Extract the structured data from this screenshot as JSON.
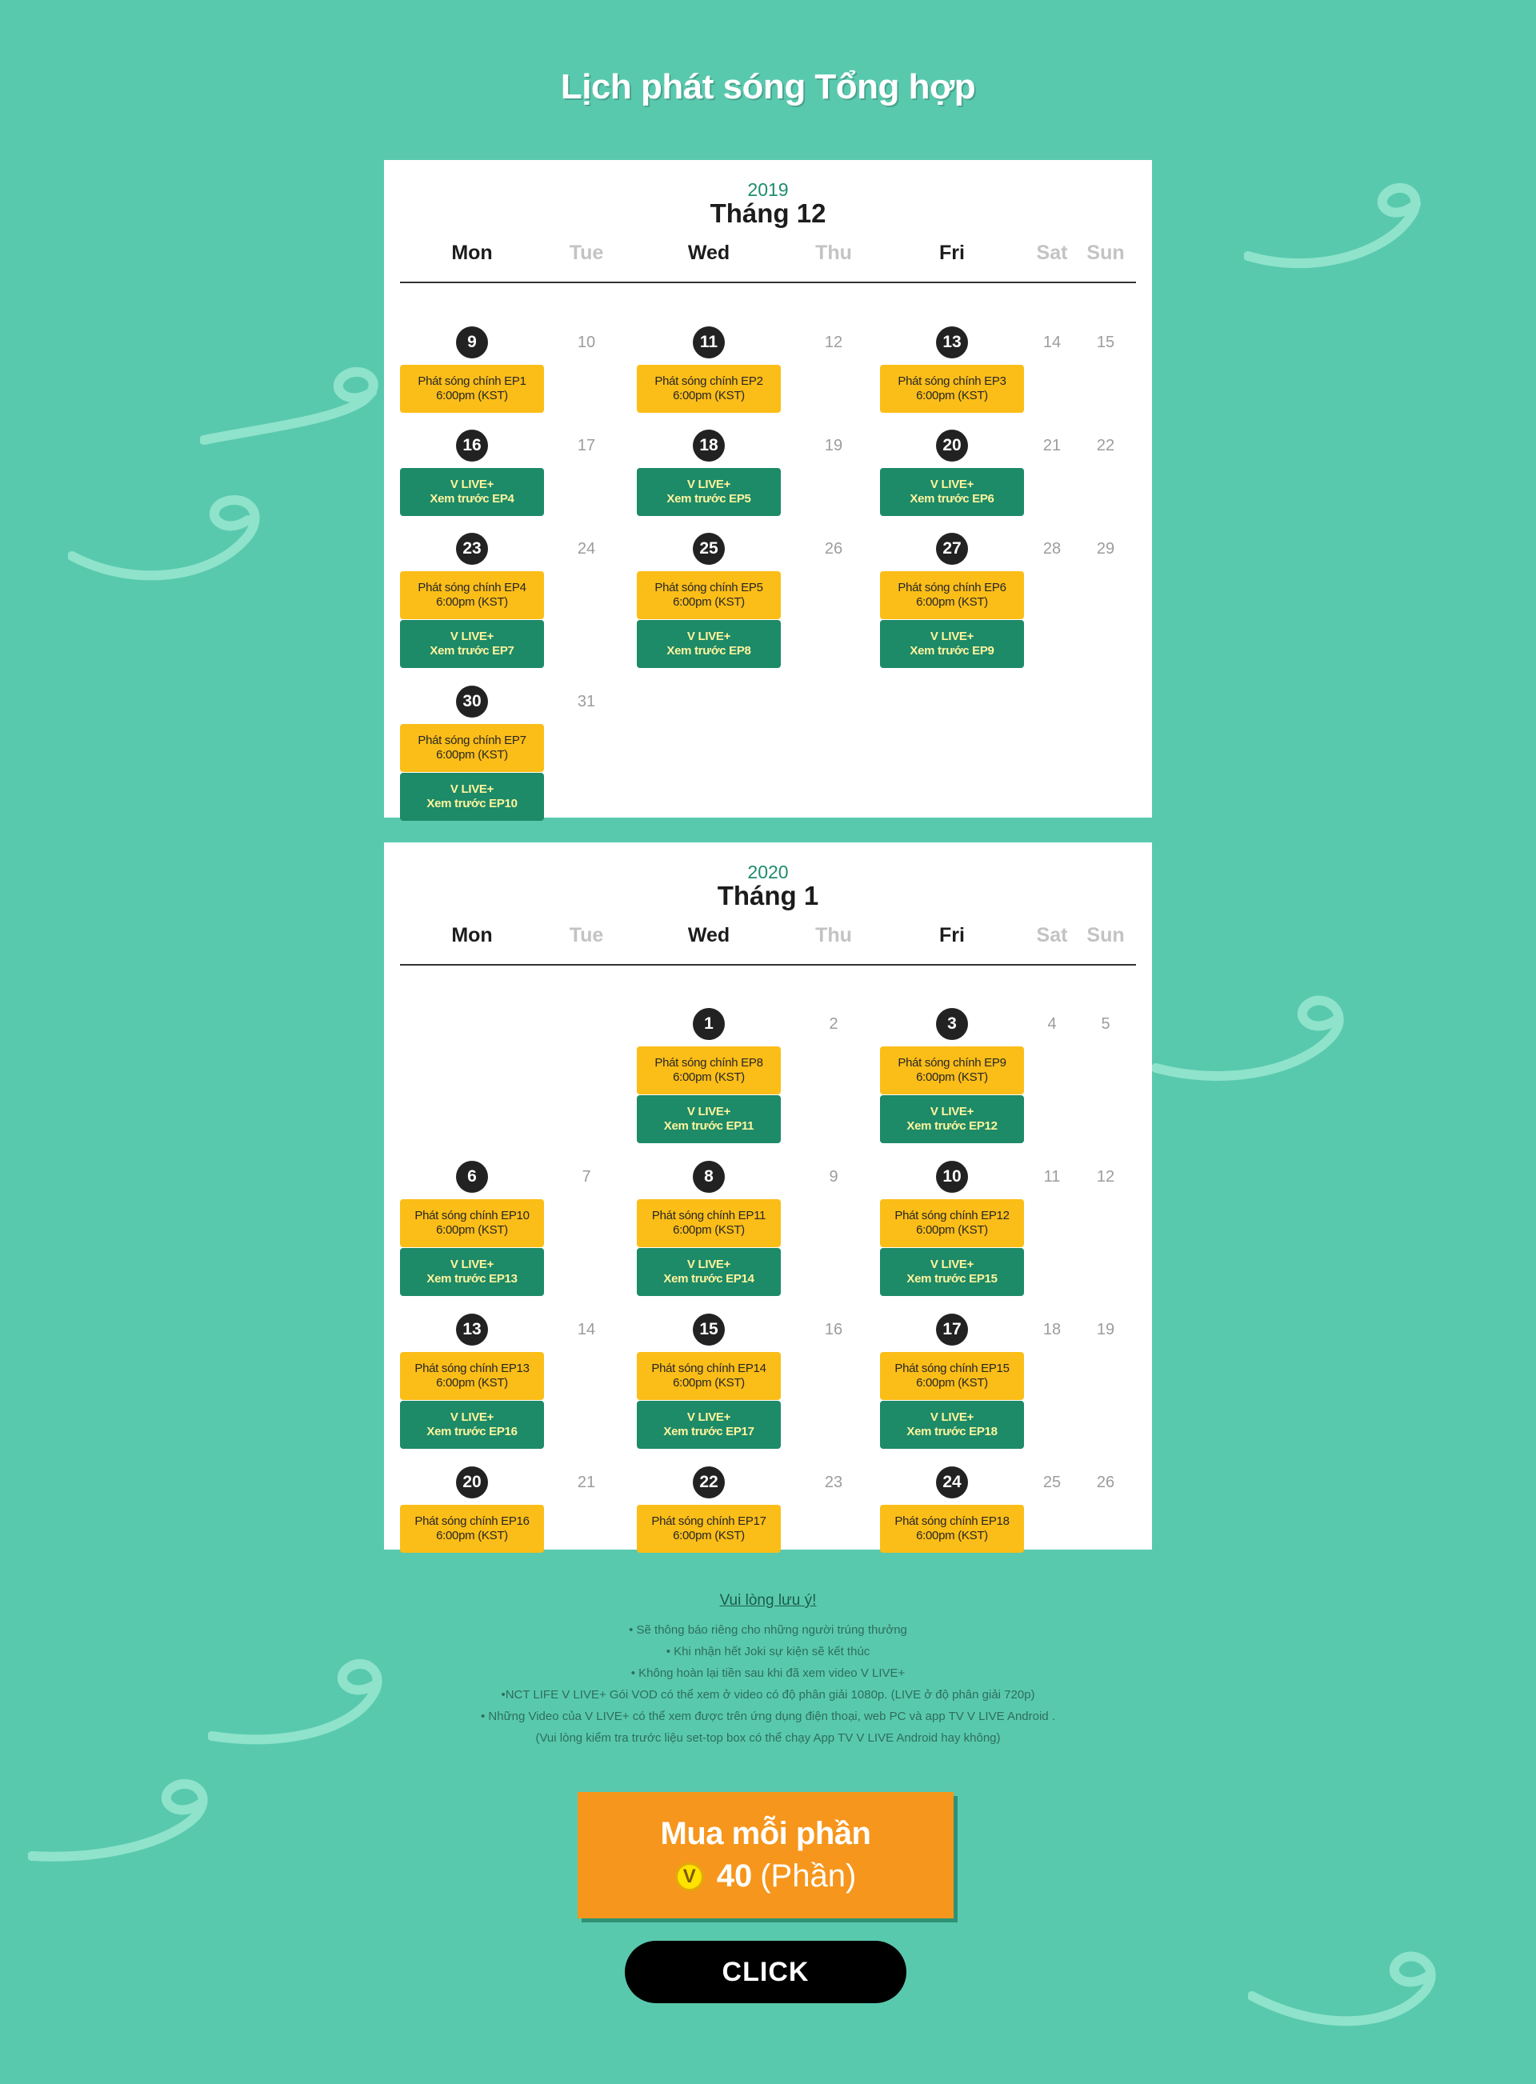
{
  "page_title": "Lịch phát sóng Tổng hợp",
  "weekday_labels": [
    "Mon",
    "Tue",
    "Wed",
    "Thu",
    "Fri",
    "Sat",
    "Sun"
  ],
  "calendars": [
    {
      "year": "2019",
      "month": "Tháng 12",
      "weeks": [
        {
          "days": [
            {
              "d": "9",
              "hl": true,
              "events": [
                {
                  "t": "main",
                  "l1": "Phát sóng chính EP1",
                  "l2": "6:00pm (KST)"
                }
              ]
            },
            {
              "d": "10"
            },
            {
              "d": "11",
              "hl": true,
              "events": [
                {
                  "t": "main",
                  "l1": "Phát sóng chính EP2",
                  "l2": "6:00pm (KST)"
                }
              ]
            },
            {
              "d": "12"
            },
            {
              "d": "13",
              "hl": true,
              "events": [
                {
                  "t": "main",
                  "l1": "Phát sóng chính EP3",
                  "l2": "6:00pm (KST)"
                }
              ]
            },
            {
              "d": "14"
            },
            {
              "d": "15"
            }
          ]
        },
        {
          "days": [
            {
              "d": "16",
              "hl": true,
              "events": [
                {
                  "t": "live",
                  "l1": "V LIVE+",
                  "l2": "Xem trước EP4"
                }
              ]
            },
            {
              "d": "17"
            },
            {
              "d": "18",
              "hl": true,
              "events": [
                {
                  "t": "live",
                  "l1": "V LIVE+",
                  "l2": "Xem trước EP5"
                }
              ]
            },
            {
              "d": "19"
            },
            {
              "d": "20",
              "hl": true,
              "events": [
                {
                  "t": "live",
                  "l1": "V LIVE+",
                  "l2": "Xem trước EP6"
                }
              ]
            },
            {
              "d": "21"
            },
            {
              "d": "22"
            }
          ]
        },
        {
          "days": [
            {
              "d": "23",
              "hl": true,
              "events": [
                {
                  "t": "main",
                  "l1": "Phát sóng chính EP4",
                  "l2": "6:00pm (KST)"
                },
                {
                  "t": "live",
                  "l1": "V LIVE+",
                  "l2": "Xem trước EP7"
                }
              ]
            },
            {
              "d": "24"
            },
            {
              "d": "25",
              "hl": true,
              "events": [
                {
                  "t": "main",
                  "l1": "Phát sóng chính EP5",
                  "l2": "6:00pm (KST)"
                },
                {
                  "t": "live",
                  "l1": "V LIVE+",
                  "l2": "Xem trước EP8"
                }
              ]
            },
            {
              "d": "26"
            },
            {
              "d": "27",
              "hl": true,
              "events": [
                {
                  "t": "main",
                  "l1": "Phát sóng chính EP6",
                  "l2": "6:00pm (KST)"
                },
                {
                  "t": "live",
                  "l1": "V LIVE+",
                  "l2": "Xem trước EP9"
                }
              ]
            },
            {
              "d": "28"
            },
            {
              "d": "29"
            }
          ]
        },
        {
          "days": [
            {
              "d": "30",
              "hl": true,
              "events": [
                {
                  "t": "main",
                  "l1": "Phát sóng chính EP7",
                  "l2": "6:00pm (KST)"
                },
                {
                  "t": "live",
                  "l1": "V LIVE+",
                  "l2": "Xem trước EP10"
                }
              ]
            },
            {
              "d": "31"
            },
            {
              "d": ""
            },
            {
              "d": ""
            },
            {
              "d": ""
            },
            {
              "d": ""
            },
            {
              "d": ""
            }
          ]
        }
      ]
    },
    {
      "year": "2020",
      "month": "Tháng 1",
      "weeks": [
        {
          "days": [
            {
              "d": ""
            },
            {
              "d": ""
            },
            {
              "d": "1",
              "hl": true,
              "events": [
                {
                  "t": "main",
                  "l1": "Phát sóng chính EP8",
                  "l2": "6:00pm (KST)"
                },
                {
                  "t": "live",
                  "l1": "V LIVE+",
                  "l2": "Xem trước EP11"
                }
              ]
            },
            {
              "d": "2"
            },
            {
              "d": "3",
              "hl": true,
              "events": [
                {
                  "t": "main",
                  "l1": "Phát sóng chính EP9",
                  "l2": "6:00pm (KST)"
                },
                {
                  "t": "live",
                  "l1": "V LIVE+",
                  "l2": "Xem trước EP12"
                }
              ]
            },
            {
              "d": "4"
            },
            {
              "d": "5"
            }
          ]
        },
        {
          "days": [
            {
              "d": "6",
              "hl": true,
              "events": [
                {
                  "t": "main",
                  "l1": "Phát sóng chính EP10",
                  "l2": "6:00pm (KST)"
                },
                {
                  "t": "live",
                  "l1": "V LIVE+",
                  "l2": "Xem trước EP13"
                }
              ]
            },
            {
              "d": "7"
            },
            {
              "d": "8",
              "hl": true,
              "events": [
                {
                  "t": "main",
                  "l1": "Phát sóng chính EP11",
                  "l2": "6:00pm (KST)"
                },
                {
                  "t": "live",
                  "l1": "V LIVE+",
                  "l2": "Xem trước EP14"
                }
              ]
            },
            {
              "d": "9"
            },
            {
              "d": "10",
              "hl": true,
              "events": [
                {
                  "t": "main",
                  "l1": "Phát sóng chính EP12",
                  "l2": "6:00pm (KST)"
                },
                {
                  "t": "live",
                  "l1": "V LIVE+",
                  "l2": "Xem trước EP15"
                }
              ]
            },
            {
              "d": "11"
            },
            {
              "d": "12"
            }
          ]
        },
        {
          "days": [
            {
              "d": "13",
              "hl": true,
              "events": [
                {
                  "t": "main",
                  "l1": "Phát sóng chính EP13",
                  "l2": "6:00pm (KST)"
                },
                {
                  "t": "live",
                  "l1": "V LIVE+",
                  "l2": "Xem trước EP16"
                }
              ]
            },
            {
              "d": "14"
            },
            {
              "d": "15",
              "hl": true,
              "events": [
                {
                  "t": "main",
                  "l1": "Phát sóng chính EP14",
                  "l2": "6:00pm (KST)"
                },
                {
                  "t": "live",
                  "l1": "V LIVE+",
                  "l2": "Xem trước EP17"
                }
              ]
            },
            {
              "d": "16"
            },
            {
              "d": "17",
              "hl": true,
              "events": [
                {
                  "t": "main",
                  "l1": "Phát sóng chính EP15",
                  "l2": "6:00pm (KST)"
                },
                {
                  "t": "live",
                  "l1": "V LIVE+",
                  "l2": "Xem trước EP18"
                }
              ]
            },
            {
              "d": "18"
            },
            {
              "d": "19"
            }
          ]
        },
        {
          "days": [
            {
              "d": "20",
              "hl": true,
              "events": [
                {
                  "t": "main",
                  "l1": "Phát sóng chính EP16",
                  "l2": "6:00pm (KST)"
                }
              ]
            },
            {
              "d": "21"
            },
            {
              "d": "22",
              "hl": true,
              "events": [
                {
                  "t": "main",
                  "l1": "Phát sóng chính EP17",
                  "l2": "6:00pm (KST)"
                }
              ]
            },
            {
              "d": "23"
            },
            {
              "d": "24",
              "hl": true,
              "events": [
                {
                  "t": "main",
                  "l1": "Phát sóng chính EP18",
                  "l2": "6:00pm (KST)"
                }
              ]
            },
            {
              "d": "25"
            },
            {
              "d": "26"
            }
          ]
        }
      ]
    }
  ],
  "notes": {
    "title": "Vui lòng lưu ý!",
    "lines": [
      "• Sẽ thông báo riêng cho những người trúng thưởng",
      "• Khi nhận hết Joki sự kiện sẽ kết thúc",
      "• Không hoàn lại tiền sau khi đã xem video V LIVE+",
      "•NCT LIFE V LIVE+ Gói VOD có thể xem ở video có độ phân giải 1080p.  (LIVE ở độ phân giải 720p)",
      "• Những Video của V LIVE+ có thể xem được trên ứng dụng điện thoại, web PC và app TV V LIVE Android .",
      "(Vui lòng kiểm tra trước liệu set-top box có thể chạy App TV V LIVE Android  hay không)"
    ]
  },
  "purchase": {
    "title": "Mua mỗi phần",
    "coin_symbol": "V",
    "amount": "40",
    "unit": "(Phần)"
  },
  "click_label": "CLICK",
  "colors": {
    "background": "#59c9ae",
    "broadcast": "#fbbd18",
    "vlive": "#1d8a68",
    "buy_button": "#f6961c"
  }
}
